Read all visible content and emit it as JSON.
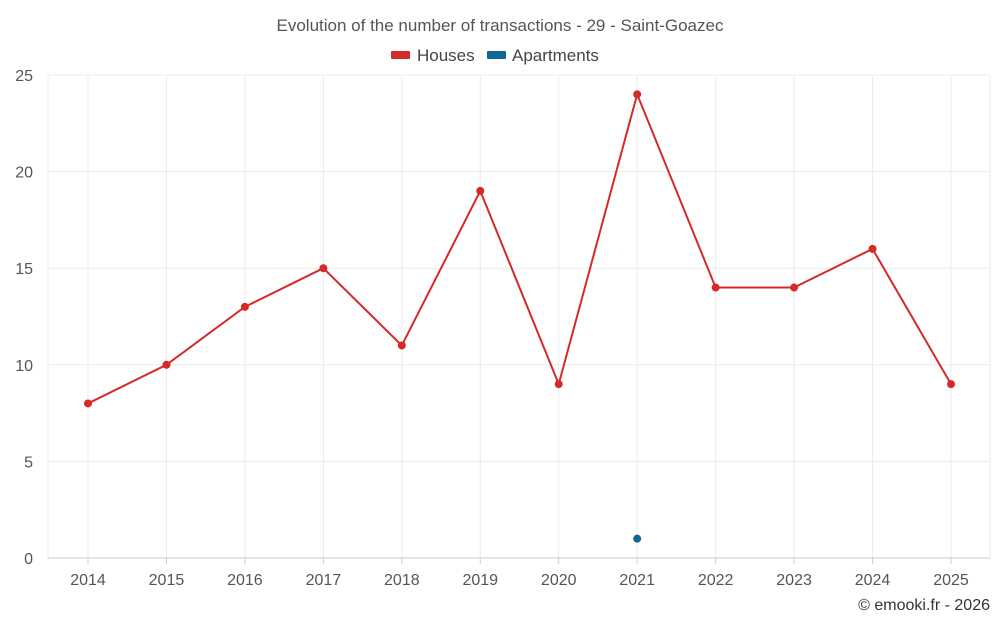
{
  "chart_data": {
    "type": "line",
    "title": "Evolution of the number of transactions - 29 - Saint-Goazec",
    "categories": [
      "2014",
      "2015",
      "2016",
      "2017",
      "2018",
      "2019",
      "2020",
      "2021",
      "2022",
      "2023",
      "2024",
      "2025"
    ],
    "series": [
      {
        "name": "Houses",
        "color": "#d42a2a",
        "values": [
          8,
          10,
          13,
          15,
          11,
          19,
          9,
          24,
          14,
          14,
          16,
          9
        ]
      },
      {
        "name": "Apartments",
        "color": "#0f6699",
        "values": [
          null,
          null,
          null,
          null,
          null,
          null,
          null,
          1,
          null,
          null,
          null,
          null
        ]
      }
    ],
    "ylim": [
      0,
      25
    ],
    "yticks": [
      0,
      5,
      10,
      15,
      20,
      25
    ],
    "xlabel": "",
    "ylabel": "",
    "grid": true,
    "legend": "top-center"
  },
  "credit": "© emooki.fr - 2026",
  "colors": {
    "grid": "#ebebeb",
    "axis": "#cccccc",
    "text": "#555555"
  }
}
